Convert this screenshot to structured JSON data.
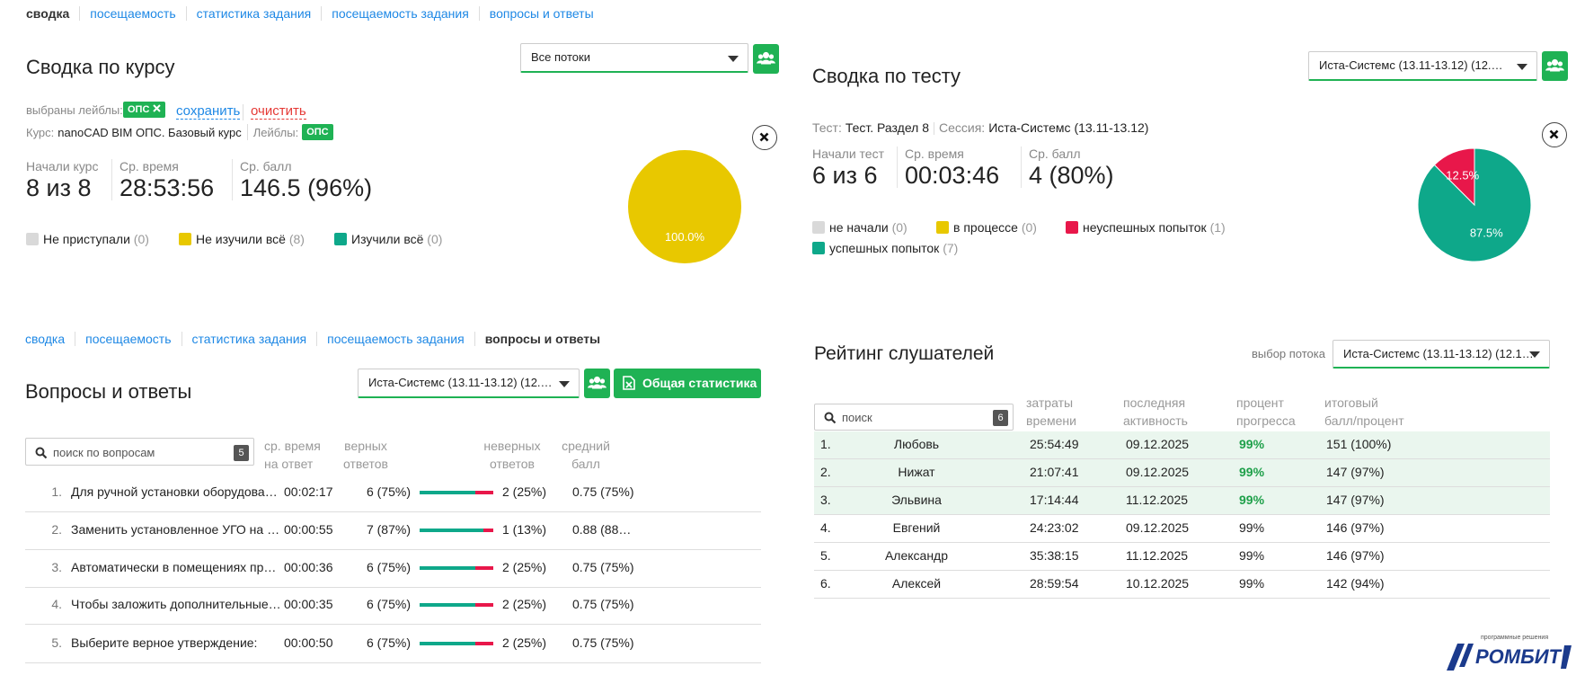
{
  "course_summary": {
    "tabs": [
      "сводка",
      "посещаемость",
      "статистика задания",
      "посещаемость задания",
      "вопросы и ответы"
    ],
    "active_tab": 0,
    "title": "Сводка по курсу",
    "stream_select": "Все потоки",
    "labels_caption": "выбраны лейблы:",
    "label_chip": "ОПС",
    "save": "сохранить",
    "clear": "очистить",
    "course_caption": "Курс:",
    "course": "nanoCAD BIM ОПС. Базовый курс",
    "labels2_caption": "Лейблы:",
    "label_chip2": "ОПС",
    "stats": [
      {
        "label": "Начали курс",
        "value": "8 из 8"
      },
      {
        "label": "Ср. время",
        "value": "28:53:56"
      },
      {
        "label": "Ср. балл",
        "value": "146.5 (96%)"
      }
    ],
    "legend": [
      {
        "name": "Не приступали",
        "count": "(0)",
        "color": "#d9d9d9"
      },
      {
        "name": "Не изучили всё",
        "count": "(8)",
        "color": "#e8c800"
      },
      {
        "name": "Изучили всё",
        "count": "(0)",
        "color": "#0ea88a"
      }
    ],
    "pie": {
      "type": "pie",
      "values": [
        100
      ],
      "value_labels": [
        "100.0%"
      ],
      "colors": [
        "#e8c800"
      ]
    }
  },
  "test_summary": {
    "title": "Сводка по тесту",
    "stream_select": "Иста-Системс (13.11-13.12) (12.…",
    "test_caption": "Тест:",
    "test": "Тест. Раздел 8",
    "session_caption": "Сессия:",
    "session": "Иста-Системс (13.11-13.12)",
    "stats": [
      {
        "label": "Начали тест",
        "value": "6 из 6"
      },
      {
        "label": "Ср. время",
        "value": "00:03:46"
      },
      {
        "label": "Ср. балл",
        "value": "4 (80%)"
      }
    ],
    "legend": [
      {
        "name": "не начали",
        "count": "(0)",
        "color": "#d9d9d9"
      },
      {
        "name": "в процессе",
        "count": "(0)",
        "color": "#e8c800"
      },
      {
        "name": "неуспешных попыток",
        "count": "(1)",
        "color": "#e8174a"
      },
      {
        "name": "успешных попыток",
        "count": "(7)",
        "color": "#0ea88a"
      }
    ],
    "pie": {
      "type": "pie",
      "values": [
        87.5,
        12.5
      ],
      "value_labels": [
        "87.5%",
        "12.5%"
      ],
      "colors": [
        "#0ea88a",
        "#e8174a"
      ]
    }
  },
  "questions": {
    "tabs": [
      "сводка",
      "посещаемость",
      "статистика задания",
      "посещаемость задания",
      "вопросы и ответы"
    ],
    "active_tab": 4,
    "title": "Вопросы и ответы",
    "stream_select": "Иста-Системс (13.11-13.12) (12.…",
    "stats_button": "Общая статистика",
    "search_placeholder": "поиск по вопросам",
    "search_count": "5",
    "headers": [
      [
        "ср. время",
        "на ответ"
      ],
      [
        "верных",
        "ответов"
      ],
      [
        "неверных",
        "ответов"
      ],
      [
        "средний",
        "балл"
      ]
    ],
    "rows": [
      {
        "num": "1.",
        "text": "Для ручной установки оборудова…",
        "time": "00:02:17",
        "correct": {
          "value": 75,
          "label": "6 (75%)"
        },
        "wrong": {
          "value": 25,
          "label": "2 (25%)"
        },
        "avg": "0.75 (75%)"
      },
      {
        "num": "2.",
        "text": "Заменить установленное УГО на …",
        "time": "00:00:55",
        "correct": {
          "value": 87,
          "label": "7 (87%)"
        },
        "wrong": {
          "value": 13,
          "label": "1 (13%)"
        },
        "avg": "0.88 (88…"
      },
      {
        "num": "3.",
        "text": "Автоматически в помещениях пр…",
        "time": "00:00:36",
        "correct": {
          "value": 75,
          "label": "6 (75%)"
        },
        "wrong": {
          "value": 25,
          "label": "2 (25%)"
        },
        "avg": "0.75 (75%)"
      },
      {
        "num": "4.",
        "text": "Чтобы заложить дополнительные…",
        "time": "00:00:35",
        "correct": {
          "value": 75,
          "label": "6 (75%)"
        },
        "wrong": {
          "value": 25,
          "label": "2 (25%)"
        },
        "avg": "0.75 (75%)"
      },
      {
        "num": "5.",
        "text": "Выберите верное утверждение:",
        "time": "00:00:50",
        "correct": {
          "value": 75,
          "label": "6 (75%)"
        },
        "wrong": {
          "value": 25,
          "label": "2 (25%)"
        },
        "avg": "0.75 (75%)"
      }
    ]
  },
  "rating": {
    "title": "Рейтинг слушателей",
    "stream_caption": "выбор потока",
    "stream_select": "Иста-Системс (13.11-13.12) (12.1…",
    "search_placeholder": "поиск",
    "search_count": "6",
    "headers": [
      [
        "затраты",
        "времени"
      ],
      [
        "последняя",
        "активность"
      ],
      [
        "процент",
        "прогресса"
      ],
      [
        "итоговый",
        "балл/процент"
      ]
    ],
    "rows": [
      {
        "rank": "1.",
        "name": "Любовь",
        "time": "25:54:49",
        "last": "09.12.2025",
        "progress": "99%",
        "score": "151 (100%)"
      },
      {
        "rank": "2.",
        "name": "Нижат",
        "time": "21:07:41",
        "last": "09.12.2025",
        "progress": "99%",
        "score": "147 (97%)"
      },
      {
        "rank": "3.",
        "name": "Эльвина",
        "time": "17:14:44",
        "last": "11.12.2025",
        "progress": "99%",
        "score": "147 (97%)"
      },
      {
        "rank": "4.",
        "name": "Евгений",
        "time": "24:23:02",
        "last": "09.12.2025",
        "progress": "99%",
        "score": "146 (97%)"
      },
      {
        "rank": "5.",
        "name": "Александр",
        "time": "35:38:15",
        "last": "11.12.2025",
        "progress": "99%",
        "score": "146 (97%)"
      },
      {
        "rank": "6.",
        "name": "Алексей",
        "time": "28:59:54",
        "last": "10.12.2025",
        "progress": "99%",
        "score": "142 (94%)"
      }
    ]
  },
  "logo": {
    "tagline": "программные решения",
    "name": "РОМБИТ"
  }
}
